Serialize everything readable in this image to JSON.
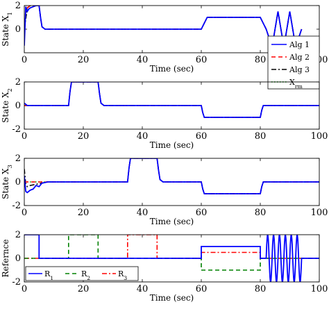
{
  "chart_data": [
    {
      "type": "line",
      "ylabel": "State X_1",
      "xlabel": "Time (sec)",
      "xlim": [
        0,
        100
      ],
      "ylim": [
        -2,
        2
      ],
      "xticks": [
        "0",
        "20",
        "40",
        "60",
        "80",
        "100"
      ],
      "yticks": [
        "2",
        "0"
      ],
      "legend_position": "right",
      "series": [
        {
          "name": "Alg 1",
          "color": "#0000ff",
          "style": "solid",
          "x": [
            0,
            0.5,
            1,
            1.5,
            2,
            3,
            4,
            5,
            5.5,
            6,
            7,
            10,
            20,
            30,
            40,
            50,
            60,
            62,
            80,
            82,
            84,
            86,
            88,
            90,
            92,
            94
          ],
          "y": [
            -1.4,
            1.9,
            1.5,
            1.7,
            1.8,
            1.9,
            2,
            2,
            1,
            0.2,
            0,
            0,
            0,
            0,
            0,
            0,
            0,
            1,
            1,
            0,
            -1.5,
            1.5,
            -1.5,
            1.5,
            -1.5,
            0
          ]
        },
        {
          "name": "Alg 2",
          "color": "#ff0000",
          "style": "dashed",
          "x": [
            0,
            0.5,
            1,
            2,
            3,
            4,
            5,
            5.5,
            6,
            7,
            10,
            20,
            30,
            40,
            50,
            60,
            62,
            80,
            82,
            84,
            86,
            88,
            90,
            92,
            94
          ],
          "y": [
            0,
            1.5,
            1.8,
            2,
            2,
            2,
            2,
            1,
            0.2,
            0,
            0,
            0,
            0,
            0,
            0,
            0,
            1,
            1,
            0,
            -1.5,
            1.5,
            -1.5,
            1.5,
            -1.5,
            0
          ]
        },
        {
          "name": "Alg 3",
          "color": "#000000",
          "style": "dashdot",
          "x": [
            0,
            1,
            2,
            4,
            5,
            5.5,
            6,
            7,
            10,
            20,
            30,
            40,
            50,
            60,
            62,
            80,
            82,
            84,
            86,
            88,
            90,
            92,
            94
          ],
          "y": [
            0,
            1.8,
            2,
            2,
            2,
            1,
            0.2,
            0,
            0,
            0,
            0,
            0,
            0,
            0,
            1,
            1,
            0,
            -1.5,
            1.5,
            -1.5,
            1.5,
            -1.5,
            0
          ]
        },
        {
          "name": "X_rm",
          "color": "#00aa00",
          "style": "dotted",
          "x": [
            0,
            1,
            2,
            4,
            5,
            5.5,
            6,
            7,
            10,
            20,
            30,
            40,
            50,
            60,
            62,
            80,
            82,
            84,
            86,
            88,
            90,
            92,
            94
          ],
          "y": [
            0,
            1.8,
            2,
            2,
            2,
            1,
            0.2,
            0,
            0,
            0,
            0,
            0,
            0,
            0,
            1,
            1,
            0,
            -1.5,
            1.5,
            -1.5,
            1.5,
            -1.5,
            0
          ]
        }
      ]
    },
    {
      "type": "line",
      "ylabel": "State X_2",
      "xlabel": "Time (sec)",
      "xlim": [
        0,
        100
      ],
      "ylim": [
        -2,
        2
      ],
      "xticks": [
        "0",
        "20",
        "40",
        "60",
        "80",
        "100"
      ],
      "yticks": [
        "2",
        "0",
        "-2"
      ],
      "series": [
        {
          "name": "Alg 1",
          "color": "#0000ff",
          "style": "solid",
          "x": [
            0,
            1,
            15,
            15.5,
            16,
            25,
            25.5,
            26,
            27,
            60,
            60.5,
            61,
            80,
            80.5,
            81,
            100
          ],
          "y": [
            0.2,
            0,
            0,
            1.2,
            2,
            2,
            1,
            0.2,
            0,
            0,
            -0.6,
            -1,
            -1,
            -0.4,
            0,
            0
          ]
        },
        {
          "name": "Alg 2",
          "color": "#ff0000",
          "style": "dashed",
          "x": [
            0,
            15,
            15.5,
            16,
            25,
            25.5,
            26,
            27,
            60,
            60.5,
            61,
            80,
            80.5,
            81,
            100
          ],
          "y": [
            0,
            0,
            1.2,
            2,
            2,
            1,
            0.2,
            0,
            0,
            -0.6,
            -1,
            -1,
            -0.4,
            0,
            0
          ]
        },
        {
          "name": "Alg 3",
          "color": "#000000",
          "style": "dashdot",
          "x": [
            0,
            15,
            15.5,
            16,
            25,
            25.5,
            26,
            27,
            60,
            60.5,
            61,
            80,
            80.5,
            81,
            100
          ],
          "y": [
            0,
            0,
            1.2,
            2,
            2,
            1,
            0.2,
            0,
            0,
            -0.6,
            -1,
            -1,
            -0.4,
            0,
            0
          ]
        },
        {
          "name": "X_rm",
          "color": "#00aa00",
          "style": "dotted",
          "x": [
            0,
            15,
            15.5,
            16,
            25,
            25.5,
            26,
            27,
            60,
            60.5,
            61,
            80,
            80.5,
            81,
            100
          ],
          "y": [
            0,
            0,
            1.2,
            2,
            2,
            1,
            0.2,
            0,
            0,
            -0.6,
            -1,
            -1,
            -0.4,
            0,
            0
          ]
        }
      ]
    },
    {
      "type": "line",
      "ylabel": "State X_3",
      "xlabel": "Time (sec)",
      "xlim": [
        0,
        100
      ],
      "ylim": [
        -2,
        2
      ],
      "xticks": [
        "0",
        "20",
        "40",
        "60",
        "80",
        "100"
      ],
      "yticks": [
        "2",
        "0",
        "-2"
      ],
      "series": [
        {
          "name": "Alg 1",
          "color": "#0000ff",
          "style": "solid",
          "x": [
            0,
            0.5,
            1,
            2,
            3,
            4,
            5,
            6,
            8,
            35,
            35.5,
            36,
            45,
            45.5,
            46,
            47,
            60,
            60.5,
            61,
            80,
            80.5,
            81,
            100
          ],
          "y": [
            0.5,
            -0.8,
            -0.9,
            -0.7,
            -0.6,
            -0.3,
            -0.4,
            -0.1,
            0,
            0,
            1.2,
            2,
            2,
            1,
            0.2,
            0,
            0,
            -0.6,
            -1,
            -1,
            -0.4,
            0,
            0
          ]
        },
        {
          "name": "Alg 2",
          "color": "#ff0000",
          "style": "dashed",
          "x": [
            0,
            35,
            35.5,
            36,
            45,
            45.5,
            46,
            47,
            60,
            60.5,
            61,
            80,
            80.5,
            81,
            100
          ],
          "y": [
            0,
            0,
            1.2,
            2,
            2,
            1,
            0.2,
            0,
            0,
            -0.6,
            -1,
            -1,
            -0.4,
            0,
            0
          ]
        },
        {
          "name": "Alg 3",
          "color": "#000000",
          "style": "dashdot",
          "x": [
            0,
            0.5,
            1,
            2,
            4,
            6,
            8,
            35,
            35.5,
            36,
            45,
            45.5,
            46,
            47,
            60,
            60.5,
            61,
            80,
            80.5,
            81,
            100
          ],
          "y": [
            1.1,
            -0.2,
            -0.4,
            -0.3,
            -0.2,
            -0.1,
            0,
            0,
            1.2,
            2,
            2,
            1,
            0.2,
            0,
            0,
            -0.6,
            -1,
            -1,
            -0.4,
            0,
            0
          ]
        },
        {
          "name": "X_rm",
          "color": "#00aa00",
          "style": "dotted",
          "x": [
            0,
            35,
            35.5,
            36,
            45,
            45.5,
            46,
            47,
            60,
            60.5,
            61,
            80,
            80.5,
            81,
            100
          ],
          "y": [
            0,
            0,
            1.2,
            2,
            2,
            1,
            0.2,
            0,
            0,
            -0.6,
            -1,
            -1,
            -0.4,
            0,
            0
          ]
        }
      ]
    },
    {
      "type": "line",
      "ylabel": "Refernce",
      "xlabel": "Time (sec)",
      "xlim": [
        0,
        100
      ],
      "ylim": [
        -2,
        2
      ],
      "xticks": [
        "0",
        "20",
        "40",
        "60",
        "80",
        "100"
      ],
      "yticks": [
        "2",
        "0",
        "-2"
      ],
      "legend_position": "bottom-left",
      "series": [
        {
          "name": "R_1",
          "color": "#0000ff",
          "style": "solid",
          "x": [
            0,
            5,
            5,
            60,
            60,
            80,
            80,
            100
          ],
          "y": [
            2,
            2,
            0,
            0,
            1,
            1,
            0,
            0
          ],
          "sine": {
            "x_start": 82,
            "x_end": 94,
            "amplitude": 2,
            "period": 2
          }
        },
        {
          "name": "R_2",
          "color": "#008000",
          "style": "dashed",
          "x": [
            0,
            15,
            15,
            25,
            25,
            60,
            60,
            80,
            80,
            100
          ],
          "y": [
            0,
            0,
            2,
            2,
            0,
            0,
            -1,
            -1,
            0,
            0
          ]
        },
        {
          "name": "R_3",
          "color": "#ff0000",
          "style": "dashdot",
          "x": [
            0,
            35,
            35,
            45,
            45,
            60,
            60,
            80,
            80,
            100
          ],
          "y": [
            0,
            0,
            2,
            2,
            0,
            0,
            0.5,
            0.5,
            0,
            0
          ]
        }
      ]
    }
  ]
}
